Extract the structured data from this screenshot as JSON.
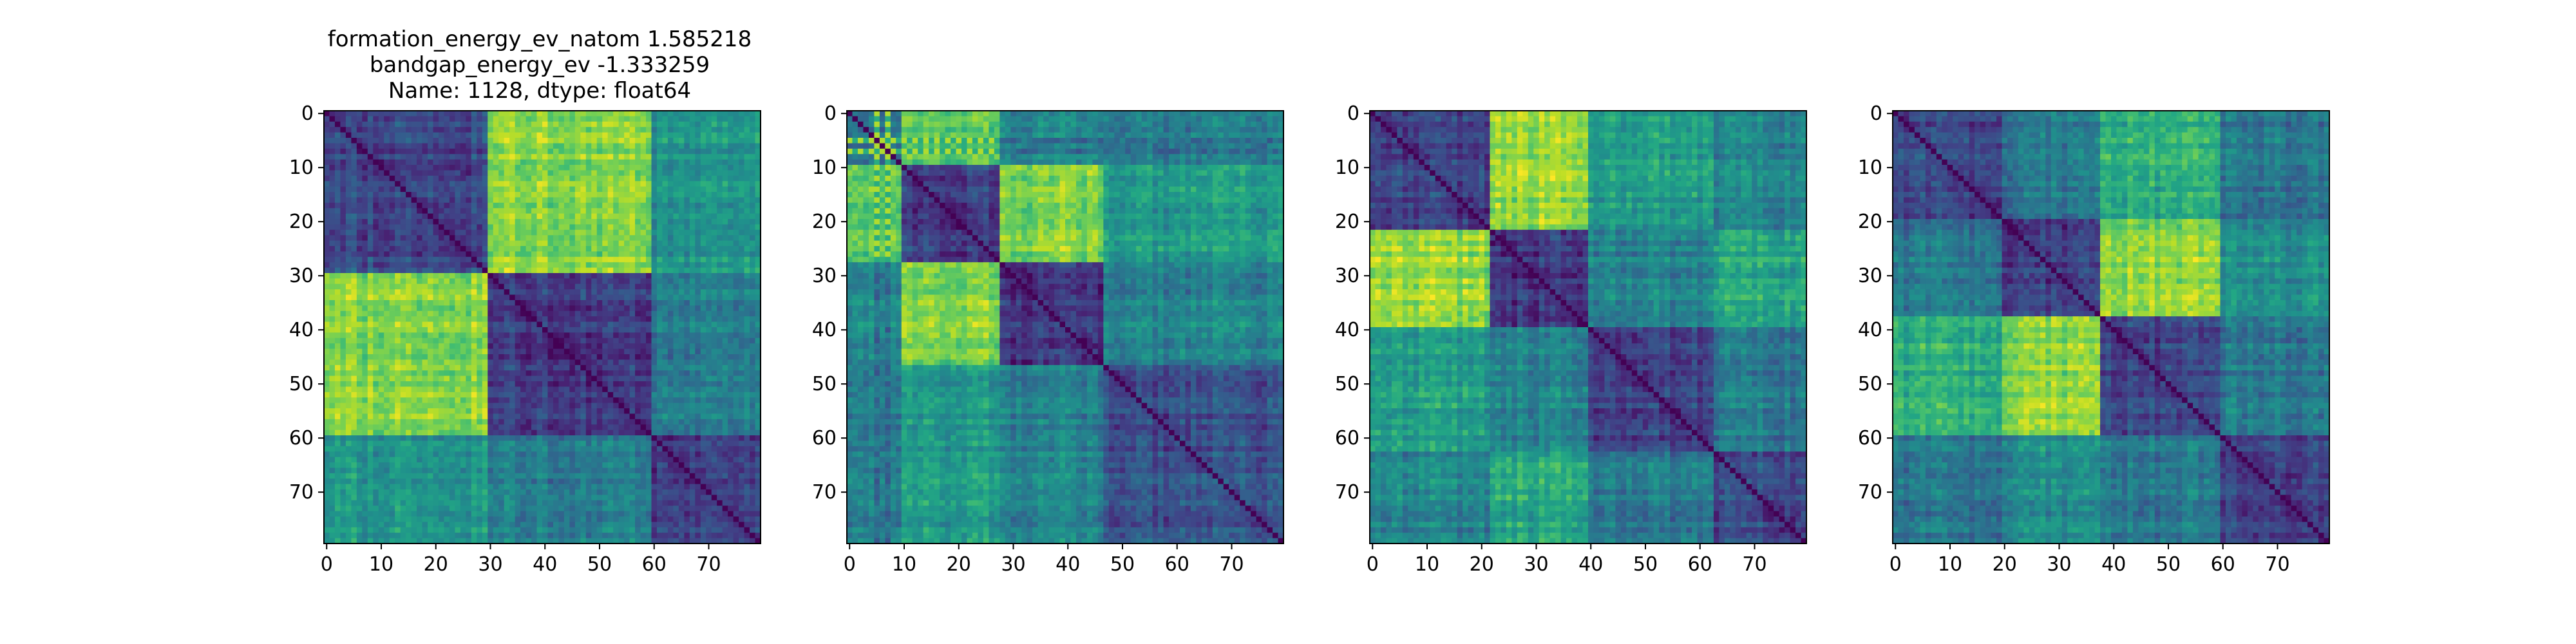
{
  "title_lines": [
    "formation_energy_ev_natom    1.585218",
    "bandgap_energy_ev           -1.333259",
    "Name: 1128, dtype: float64"
  ],
  "chart_data": [
    {
      "type": "heatmap",
      "title": "formation_energy_ev_natom    1.585218\nbandgap_energy_ev           -1.333259\nName: 1128, dtype: float64",
      "colormap": "viridis",
      "n": 80,
      "xlim": [
        0,
        80
      ],
      "ylim": [
        80,
        0
      ],
      "x_ticks": [
        0,
        10,
        20,
        30,
        40,
        50,
        60,
        70
      ],
      "y_ticks": [
        0,
        10,
        20,
        30,
        40,
        50,
        60,
        70
      ],
      "grid": false,
      "block_boundaries": [
        0,
        30,
        60,
        80
      ],
      "block_values": [
        [
          0.22,
          0.82,
          0.52
        ],
        [
          0.82,
          0.18,
          0.42
        ],
        [
          0.52,
          0.42,
          0.2
        ]
      ]
    },
    {
      "type": "heatmap",
      "colormap": "viridis",
      "n": 80,
      "xlim": [
        0,
        80
      ],
      "ylim": [
        80,
        0
      ],
      "x_ticks": [
        0,
        10,
        20,
        30,
        40,
        50,
        60,
        70
      ],
      "y_ticks": [
        0,
        10,
        20,
        30,
        40,
        50,
        60,
        70
      ],
      "grid": false,
      "block_boundaries": [
        0,
        10,
        28,
        47,
        80
      ],
      "block_values": [
        [
          0.45,
          0.78,
          0.5,
          0.45
        ],
        [
          0.78,
          0.2,
          0.82,
          0.55
        ],
        [
          0.5,
          0.82,
          0.18,
          0.45
        ],
        [
          0.45,
          0.55,
          0.45,
          0.25
        ]
      ],
      "stripe_indices": [
        5,
        7
      ]
    },
    {
      "type": "heatmap",
      "colormap": "viridis",
      "n": 80,
      "xlim": [
        0,
        80
      ],
      "ylim": [
        80,
        0
      ],
      "x_ticks": [
        0,
        10,
        20,
        30,
        40,
        50,
        60,
        70
      ],
      "y_ticks": [
        0,
        10,
        20,
        30,
        40,
        50,
        60,
        70
      ],
      "grid": false,
      "block_boundaries": [
        0,
        22,
        40,
        63,
        80
      ],
      "block_values": [
        [
          0.2,
          0.85,
          0.55,
          0.45
        ],
        [
          0.85,
          0.18,
          0.45,
          0.6
        ],
        [
          0.55,
          0.45,
          0.2,
          0.4
        ],
        [
          0.45,
          0.6,
          0.4,
          0.22
        ]
      ]
    },
    {
      "type": "heatmap",
      "colormap": "viridis",
      "n": 80,
      "xlim": [
        0,
        80
      ],
      "ylim": [
        80,
        0
      ],
      "x_ticks": [
        0,
        10,
        20,
        30,
        40,
        50,
        60,
        70
      ],
      "y_ticks": [
        0,
        10,
        20,
        30,
        40,
        50,
        60,
        70
      ],
      "grid": false,
      "block_boundaries": [
        0,
        20,
        38,
        60,
        80
      ],
      "block_values": [
        [
          0.22,
          0.4,
          0.62,
          0.4
        ],
        [
          0.4,
          0.2,
          0.82,
          0.5
        ],
        [
          0.62,
          0.82,
          0.2,
          0.4
        ],
        [
          0.4,
          0.5,
          0.4,
          0.22
        ]
      ]
    }
  ]
}
